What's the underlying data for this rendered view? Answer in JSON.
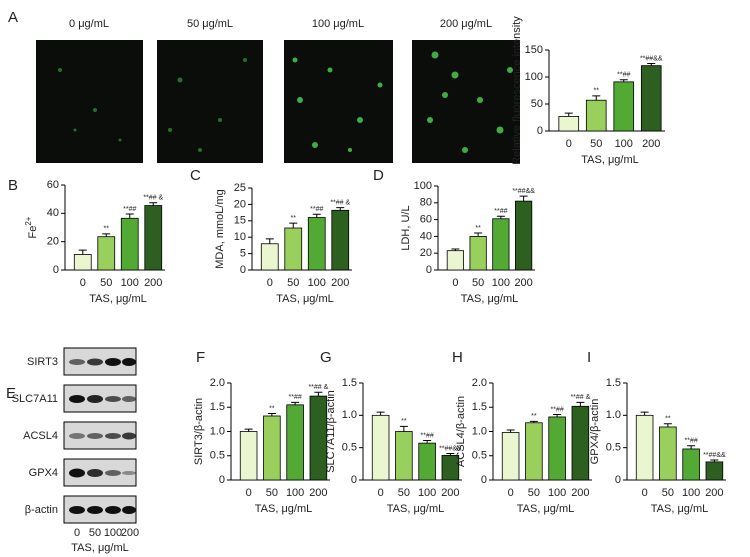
{
  "images": {
    "panel": "A",
    "labels": [
      "0 μg/mL",
      "50 μg/mL",
      "100 μg/mL",
      "200 μg/mL"
    ]
  },
  "blot": {
    "panel": "E",
    "bands": [
      "SIRT3",
      "SLC7A11",
      "ACSL4",
      "GPX4",
      "β-actin"
    ],
    "categories": [
      "0",
      "50",
      "100",
      "200"
    ],
    "xlabel": "TAS, μg/mL"
  },
  "chart_data": [
    {
      "type": "bar",
      "ylabel": "Relative fluorescence intensity",
      "xlabel": "TAS, μg/mL",
      "categories": [
        "0",
        "50",
        "100",
        "200"
      ],
      "values": [
        27,
        57,
        91,
        121
      ],
      "errors": [
        6,
        8,
        4,
        4
      ],
      "annotations": [
        null,
        "**",
        "**##",
        "**##&&"
      ],
      "colors": [
        "#e9f6cf",
        "#99cf5c",
        "#52aa35",
        "#2c5f20"
      ],
      "ylim": [
        0,
        150
      ],
      "yticks": [
        0,
        50,
        100,
        150
      ]
    },
    {
      "type": "bar",
      "panel": "B",
      "ylabel": "Fe",
      "ylabel_sup": "2+",
      "xlabel": "TAS, μg/mL",
      "categories": [
        "0",
        "50",
        "100",
        "200"
      ],
      "values": [
        11,
        23.5,
        36.5,
        45.5
      ],
      "errors": [
        3,
        2,
        3,
        2
      ],
      "annotations": [
        null,
        "**",
        "**##",
        "**## &"
      ],
      "colors": [
        "#e9f6cf",
        "#99cf5c",
        "#52aa35",
        "#2c5f20"
      ],
      "ylim": [
        0,
        60
      ],
      "yticks": [
        0,
        20,
        40,
        60
      ]
    },
    {
      "type": "bar",
      "panel": "C",
      "ylabel": "MDA, mmoL/mg",
      "xlabel": "TAS, μg/mL",
      "categories": [
        "0",
        "50",
        "100",
        "200"
      ],
      "values": [
        8,
        12.8,
        16,
        18.2
      ],
      "errors": [
        1.5,
        1.5,
        1,
        0.8
      ],
      "annotations": [
        null,
        "**",
        "**##",
        "**## &"
      ],
      "colors": [
        "#e9f6cf",
        "#99cf5c",
        "#52aa35",
        "#2c5f20"
      ],
      "ylim": [
        0,
        25
      ],
      "yticks": [
        0,
        5,
        10,
        15,
        20,
        25
      ]
    },
    {
      "type": "bar",
      "panel": "D",
      "ylabel": "LDH, U/L",
      "xlabel": "TAS, μg/mL",
      "categories": [
        "0",
        "50",
        "100",
        "200"
      ],
      "values": [
        23,
        40,
        61,
        82
      ],
      "errors": [
        2,
        4,
        3,
        6
      ],
      "annotations": [
        null,
        "**",
        "**##",
        "**##&&"
      ],
      "colors": [
        "#e9f6cf",
        "#99cf5c",
        "#52aa35",
        "#2c5f20"
      ],
      "ylim": [
        0,
        100
      ],
      "yticks": [
        0,
        20,
        40,
        60,
        80,
        100
      ]
    },
    {
      "type": "bar",
      "panel": "F",
      "ylabel": "SIRT3/β-actin",
      "xlabel": "TAS, μg/mL",
      "categories": [
        "0",
        "50",
        "100",
        "200"
      ],
      "values": [
        1.0,
        1.32,
        1.55,
        1.73
      ],
      "errors": [
        0.05,
        0.05,
        0.05,
        0.08
      ],
      "annotations": [
        null,
        "**",
        "**##",
        "**## &"
      ],
      "colors": [
        "#e9f6cf",
        "#99cf5c",
        "#52aa35",
        "#2c5f20"
      ],
      "ylim": [
        0,
        2
      ],
      "yticks": [
        0,
        0.5,
        {
          "value": 1,
          "label": "1.0"
        },
        1.5,
        {
          "value": 2,
          "label": "2.0"
        }
      ]
    },
    {
      "type": "bar",
      "panel": "G",
      "ylabel": "SLC7A11/β-actin",
      "xlabel": "TAS, μg/mL",
      "categories": [
        "0",
        "50",
        "100",
        "200"
      ],
      "values": [
        1.0,
        0.75,
        0.57,
        0.38
      ],
      "errors": [
        0.05,
        0.08,
        0.04,
        0.03
      ],
      "annotations": [
        null,
        "**",
        "**##",
        "**##&&"
      ],
      "colors": [
        "#e9f6cf",
        "#99cf5c",
        "#52aa35",
        "#2c5f20"
      ],
      "ylim": [
        0,
        1.5
      ],
      "yticks": [
        0,
        0.5,
        {
          "value": 1,
          "label": "1.0"
        },
        1.5
      ]
    },
    {
      "type": "bar",
      "panel": "H",
      "ylabel": "ACSL4/β-actin",
      "xlabel": "TAS, μg/mL",
      "categories": [
        "0",
        "50",
        "100",
        "200"
      ],
      "values": [
        0.98,
        1.18,
        1.3,
        1.52
      ],
      "errors": [
        0.05,
        0.03,
        0.05,
        0.08
      ],
      "annotations": [
        null,
        "**",
        "**##",
        "**## &"
      ],
      "colors": [
        "#e9f6cf",
        "#99cf5c",
        "#52aa35",
        "#2c5f20"
      ],
      "ylim": [
        0,
        2
      ],
      "yticks": [
        0,
        0.5,
        {
          "value": 1,
          "label": "1.0"
        },
        1.5,
        {
          "value": 2,
          "label": "2.0"
        }
      ]
    },
    {
      "type": "bar",
      "panel": "I",
      "ylabel": "GPX4/β-actin",
      "xlabel": "TAS, μg/mL",
      "categories": [
        "0",
        "50",
        "100",
        "200"
      ],
      "values": [
        1.0,
        0.82,
        0.48,
        0.28
      ],
      "errors": [
        0.05,
        0.05,
        0.05,
        0.03
      ],
      "annotations": [
        null,
        "**",
        "**##",
        "**##&&"
      ],
      "colors": [
        "#e9f6cf",
        "#99cf5c",
        "#52aa35",
        "#2c5f20"
      ],
      "ylim": [
        0,
        1.5
      ],
      "yticks": [
        0,
        0.5,
        {
          "value": 1,
          "label": "1.0"
        },
        1.5
      ]
    }
  ]
}
